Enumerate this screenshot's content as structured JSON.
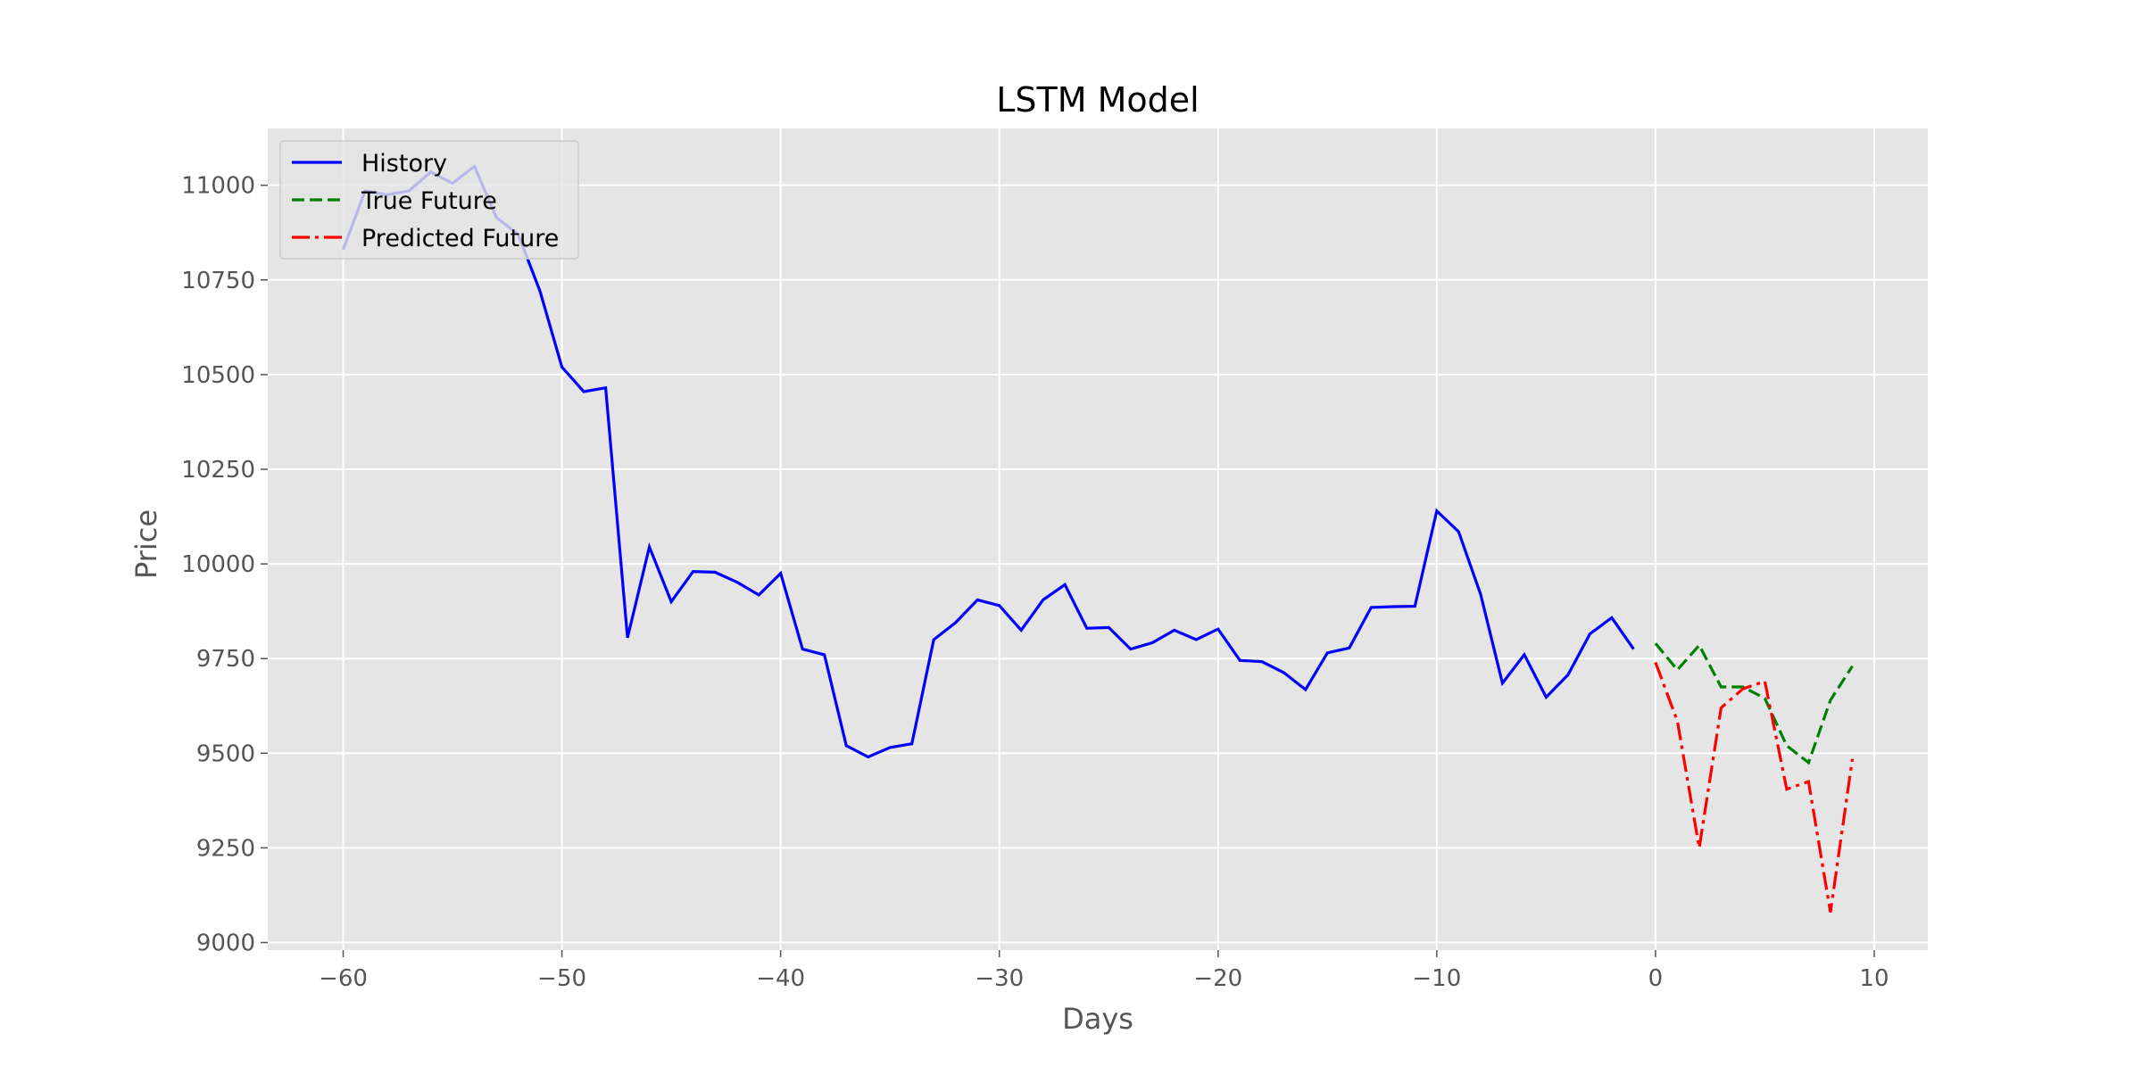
{
  "chart_data": {
    "type": "line",
    "title": "LSTM Model",
    "xlabel": "Days",
    "ylabel": "Price",
    "xlim": [
      -63.45,
      12.45
    ],
    "ylim": [
      8980,
      11150
    ],
    "xticks": [
      -60,
      -50,
      -40,
      -30,
      -20,
      -10,
      0,
      10
    ],
    "xtick_labels": [
      "−60",
      "−50",
      "−40",
      "−30",
      "−20",
      "−10",
      "0",
      "10"
    ],
    "yticks": [
      9000,
      9250,
      9500,
      9750,
      10000,
      10250,
      10500,
      10750,
      11000
    ],
    "ytick_labels": [
      "9000",
      "9250",
      "9500",
      "9750",
      "10000",
      "10250",
      "10500",
      "10750",
      "11000"
    ],
    "grid": true,
    "legend_position": "upper left",
    "series": [
      {
        "name": "History",
        "color": "#0000ff",
        "style": "solid",
        "x": [
          -60,
          -59,
          -58,
          -57,
          -56,
          -55,
          -54,
          -53,
          -52,
          -51,
          -50,
          -49,
          -48,
          -47,
          -46,
          -45,
          -44,
          -43,
          -42,
          -41,
          -40,
          -39,
          -38,
          -37,
          -36,
          -35,
          -34,
          -33,
          -32,
          -31,
          -30,
          -29,
          -28,
          -27,
          -26,
          -25,
          -24,
          -23,
          -22,
          -21,
          -20,
          -19,
          -18,
          -17,
          -16,
          -15,
          -14,
          -13,
          -12,
          -11,
          -10,
          -9,
          -8,
          -7,
          -6,
          -5,
          -4,
          -3,
          -2,
          -1
        ],
        "y": [
          10830,
          10985,
          10975,
          10985,
          11035,
          11005,
          11050,
          10915,
          10870,
          10720,
          10520,
          10455,
          10465,
          9805,
          10045,
          9900,
          9980,
          9978,
          9952,
          9918,
          9975,
          9775,
          9760,
          9520,
          9490,
          9515,
          9525,
          9800,
          9845,
          9905,
          9890,
          9825,
          9905,
          9945,
          9830,
          9832,
          9775,
          9792,
          9825,
          9800,
          9828,
          9745,
          9742,
          9713,
          9668,
          9765,
          9778,
          9885,
          9887,
          9888,
          10140,
          10085,
          9920,
          9685,
          9760,
          9648,
          9707,
          9815,
          9858,
          9775
        ]
      },
      {
        "name": "True Future",
        "color": "#008000",
        "style": "dashed",
        "x": [
          0,
          1,
          2,
          3,
          4,
          5,
          6,
          7,
          8,
          9
        ],
        "y": [
          9790,
          9720,
          9785,
          9675,
          9675,
          9645,
          9520,
          9475,
          9640,
          9730
        ]
      },
      {
        "name": "Predicted Future",
        "color": "#ff0000",
        "style": "dashdot",
        "x": [
          0,
          1,
          2,
          3,
          4,
          5,
          6,
          7,
          8,
          9
        ],
        "y": [
          9740,
          9585,
          9250,
          9620,
          9670,
          9690,
          9405,
          9425,
          9080,
          9485
        ]
      }
    ]
  }
}
